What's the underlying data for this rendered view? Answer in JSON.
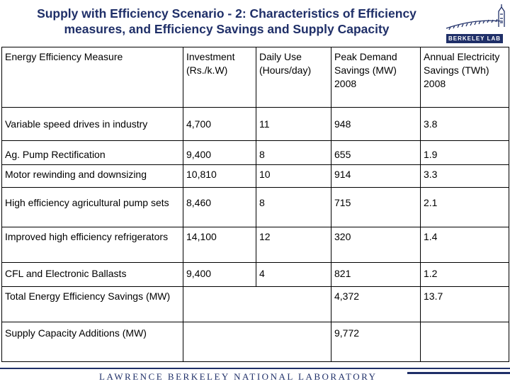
{
  "title": {
    "line1": "Supply with Efficiency Scenario - 2: Characteristics of Efficiency",
    "line2": "measures, and Efficiency Savings and Supply Capacity"
  },
  "logo": {
    "text": "BERKELEY LAB"
  },
  "table": {
    "headers": [
      "Energy Efficiency Measure",
      "Investment (Rs./k.W)",
      "Daily Use (Hours/day)",
      "Peak Demand Savings (MW) 2008",
      "Annual Electricity Savings (TWh) 2008"
    ],
    "rows": [
      [
        "Variable speed drives in industry",
        "4,700",
        "11",
        "948",
        "3.8"
      ],
      [
        "Ag. Pump Rectification",
        "9,400",
        "8",
        "655",
        "1.9"
      ],
      [
        "Motor rewinding and downsizing",
        "10,810",
        "10",
        "914",
        "3.3"
      ],
      [
        "High efficiency agricultural pump sets",
        "8,460",
        "8",
        "715",
        "2.1"
      ],
      [
        "Improved high efficiency refrigerators",
        "14,100",
        "12",
        "320",
        "1.4"
      ],
      [
        "CFL and Electronic Ballasts",
        "9,400",
        "4",
        "821",
        "1.2"
      ]
    ],
    "summary": [
      [
        "Total Energy Efficiency Savings (MW)",
        "4,372",
        "13.7"
      ],
      [
        "Supply Capacity Additions (MW)",
        "9,772",
        ""
      ]
    ]
  },
  "footer": {
    "text": "LAWRENCE BERKELEY NATIONAL LABORATORY"
  },
  "colors": {
    "brand": "#1f2f68",
    "border": "#000000"
  }
}
